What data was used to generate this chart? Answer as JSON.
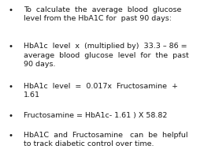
{
  "background_color": "#ffffff",
  "text_color": "#1a1a1a",
  "bullet_points": [
    "To  calculate  the  average  blood  glucose\nlevel from the HbA1C for  past 90 days:",
    "HbA1c  level  x  (multiplied by)  33.3 – 86 =\naverage  blood  glucose  level  for  the  past\n90 days.",
    "HbA1c  level  =  0.017x  Fructosamine  +\n1.61",
    "Fructosamine = HbA1c- 1.61 ) X 58.82",
    "HbA1C  and  Fructosamine   can  be  helpful\nto track diabetic control over time."
  ],
  "font_size": 6.8,
  "bullet_char": "•",
  "font_family": "DejaVu Sans",
  "fig_width": 2.59,
  "fig_height": 1.94,
  "dpi": 100
}
